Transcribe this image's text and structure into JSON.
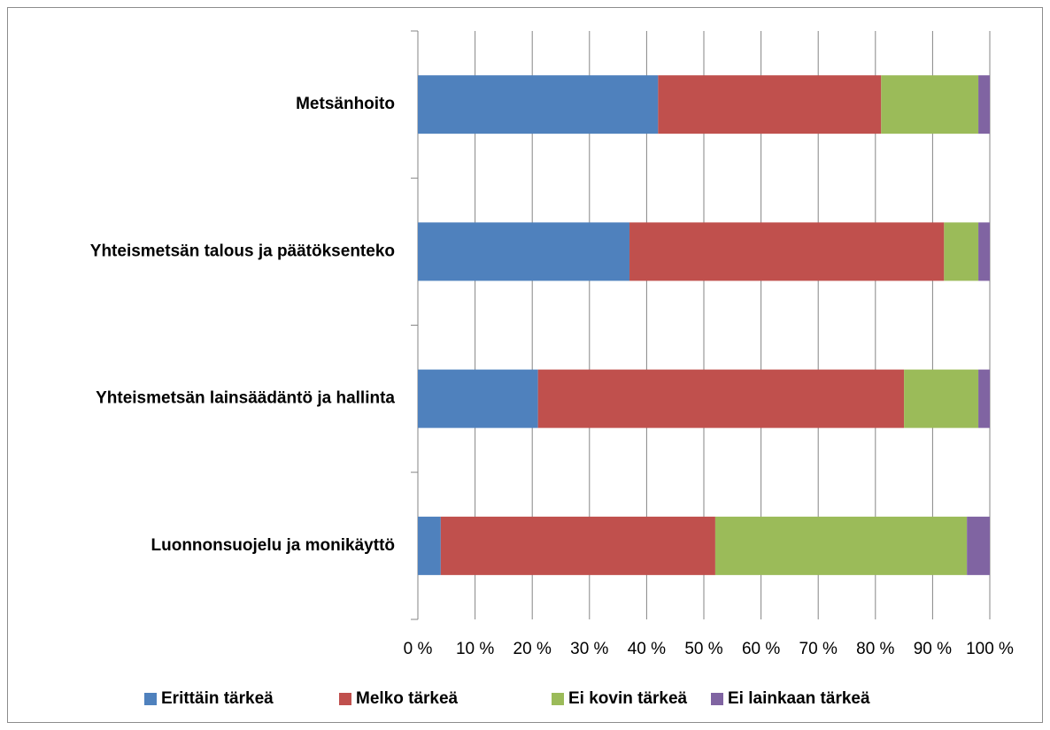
{
  "chart_data": {
    "type": "stacked_barh",
    "categories": [
      "Metsänhoito",
      "Yhteismetsän talous ja päätöksenteko",
      "Yhteismetsän lainsäädäntö ja hallinta",
      "Luonnonsuojelu ja monikäyttö"
    ],
    "series": [
      {
        "name": "Erittäin tärkeä",
        "color": "#4f81bd",
        "values": [
          42,
          37,
          21,
          4
        ]
      },
      {
        "name": "Melko tärkeä",
        "color": "#c0504d",
        "values": [
          39,
          55,
          64,
          48
        ]
      },
      {
        "name": "Ei kovin tärkeä",
        "color": "#9bbb59",
        "values": [
          17,
          6,
          13,
          44
        ]
      },
      {
        "name": "Ei lainkaan tärkeä",
        "color": "#8064a2",
        "values": [
          2,
          2,
          2,
          4
        ]
      }
    ],
    "xlim": [
      0,
      100
    ],
    "xticks": [
      {
        "value": 0,
        "label": "0 %"
      },
      {
        "value": 10,
        "label": "10 %"
      },
      {
        "value": 20,
        "label": "20 %"
      },
      {
        "value": 30,
        "label": "30 %"
      },
      {
        "value": 40,
        "label": "40 %"
      },
      {
        "value": 50,
        "label": "50 %"
      },
      {
        "value": 60,
        "label": "60 %"
      },
      {
        "value": 70,
        "label": "70 %"
      },
      {
        "value": 80,
        "label": "80 %"
      },
      {
        "value": 90,
        "label": "90 %"
      },
      {
        "value": 100,
        "label": "100 %"
      }
    ],
    "grid": true,
    "legend": "bottom"
  }
}
